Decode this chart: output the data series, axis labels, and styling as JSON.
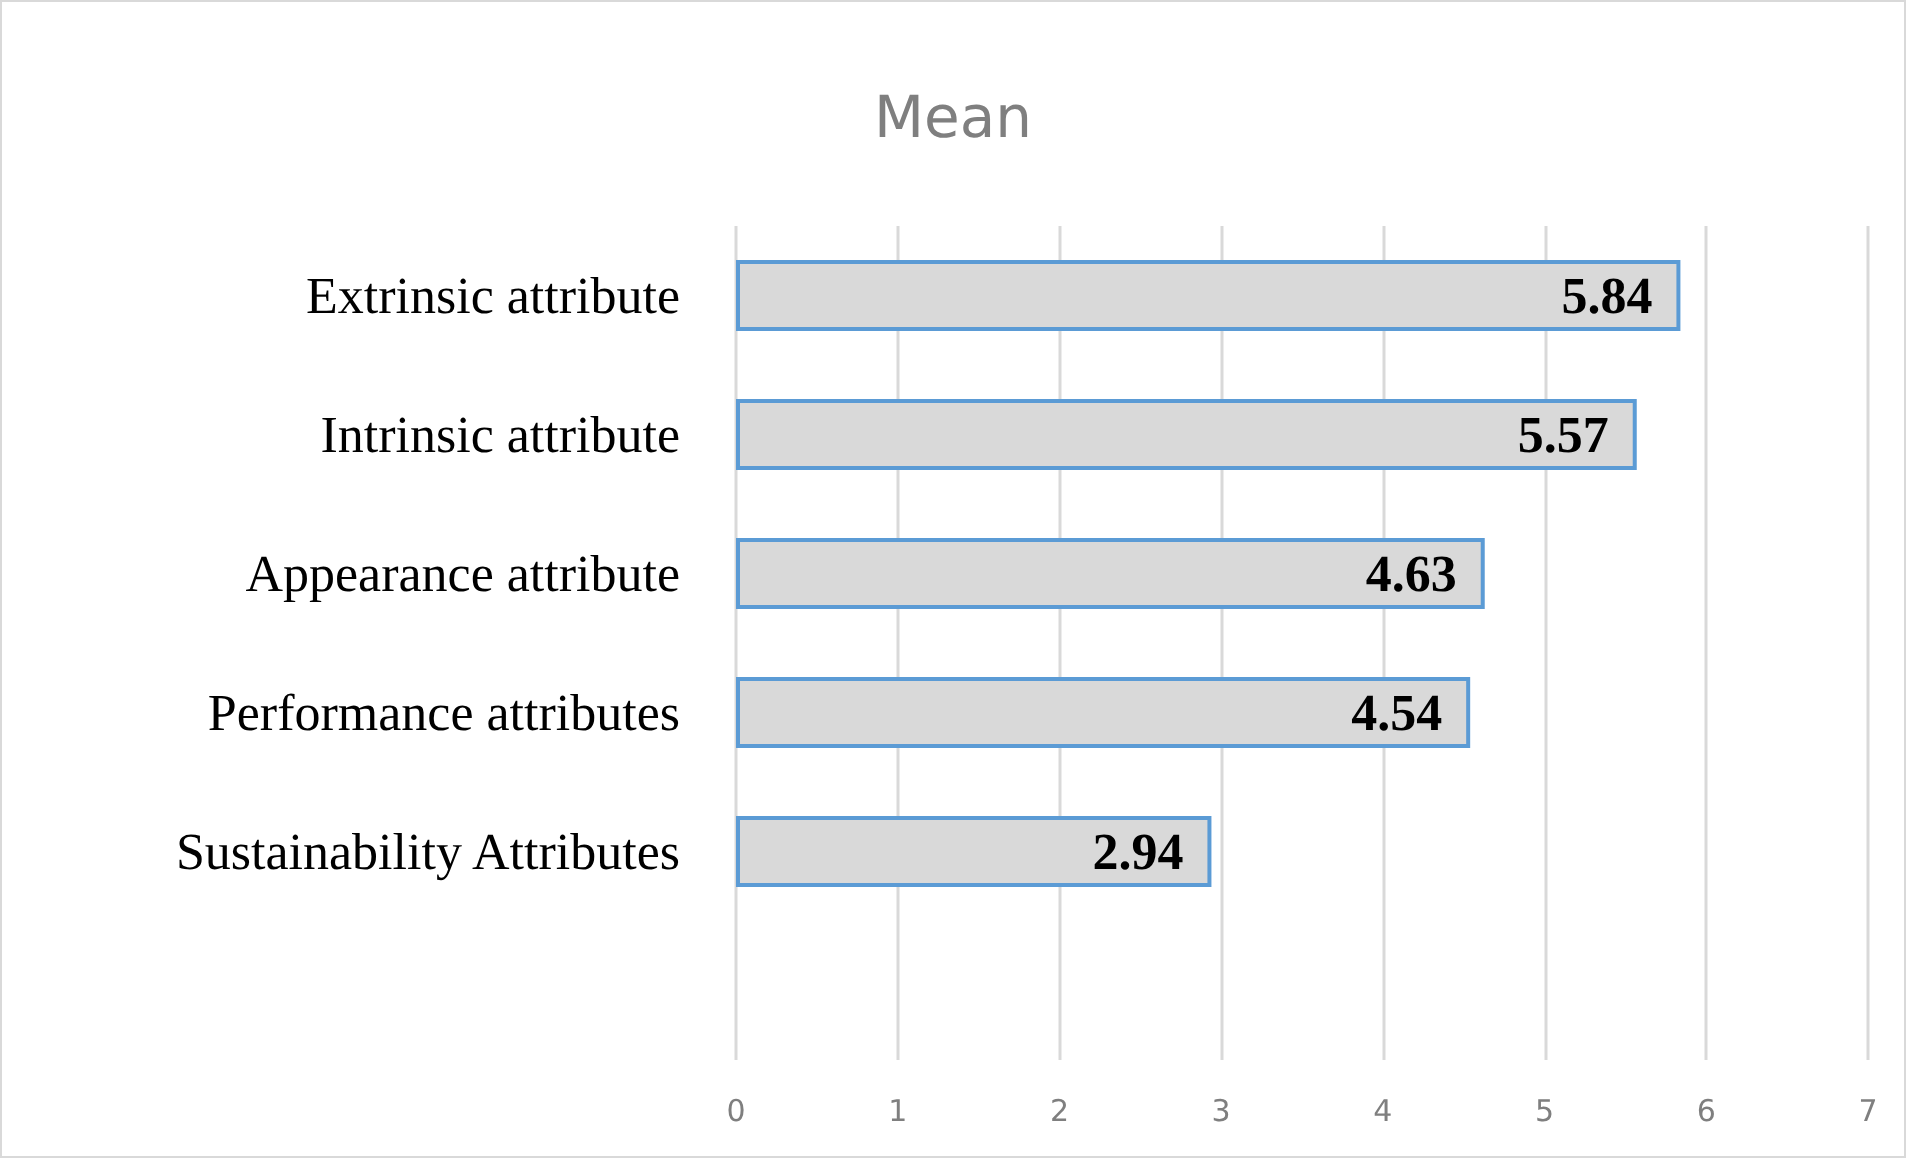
{
  "chart_data": {
    "type": "bar",
    "orientation": "horizontal",
    "title": "Mean",
    "categories": [
      "Extrinsic attribute",
      "Intrinsic attribute",
      "Appearance attribute",
      "Performance attributes",
      "Sustainability Attributes"
    ],
    "values": [
      5.84,
      5.57,
      4.63,
      4.54,
      2.94
    ],
    "color": "#d9d9d9",
    "xlim": [
      0,
      7
    ],
    "xticks": [
      0,
      1,
      2,
      3,
      4,
      5,
      6,
      7
    ],
    "grid": "x",
    "data_labels": true
  }
}
